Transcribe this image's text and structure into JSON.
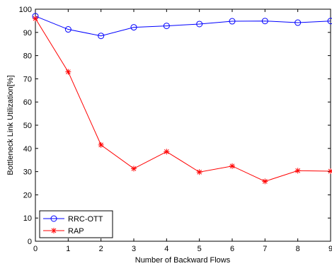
{
  "chart_data": {
    "type": "line",
    "title": "",
    "xlabel": "Number of Backward Flows",
    "ylabel": "Bottleneck Link Utilization[%]",
    "xlim": [
      0,
      9
    ],
    "ylim": [
      0,
      100
    ],
    "x": [
      0,
      1,
      2,
      3,
      4,
      5,
      6,
      7,
      8,
      9
    ],
    "xticks": [
      "0",
      "1",
      "2",
      "3",
      "4",
      "5",
      "6",
      "7",
      "8",
      "9"
    ],
    "yticks": [
      "0",
      "10",
      "20",
      "30",
      "40",
      "50",
      "60",
      "70",
      "80",
      "90",
      "100"
    ],
    "grid": false,
    "legend_position": "bottom-left",
    "series": [
      {
        "name": "RRC-OTT",
        "color": "#0000ff",
        "marker": "circle",
        "values": [
          97,
          91.3,
          88.5,
          92.2,
          92.8,
          93.6,
          94.8,
          94.9,
          94.2,
          94.9
        ]
      },
      {
        "name": "RAP",
        "color": "#ff0000",
        "marker": "asterisk",
        "values": [
          96,
          73,
          41.5,
          31.3,
          38.6,
          29.8,
          32.4,
          25.8,
          30.4,
          30.2
        ]
      }
    ]
  }
}
